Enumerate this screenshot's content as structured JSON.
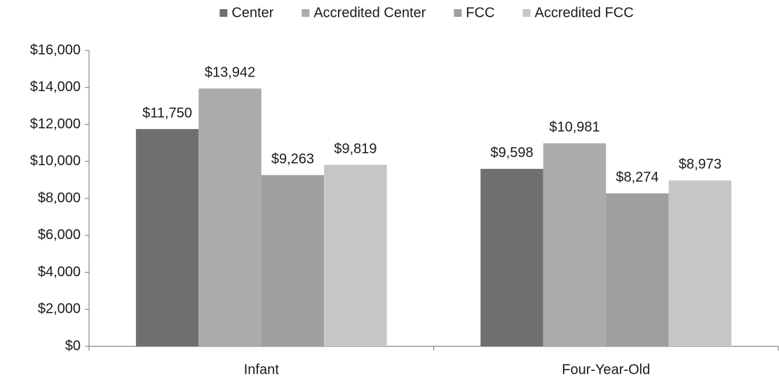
{
  "chart_data": {
    "type": "bar",
    "categories": [
      "Infant",
      "Four-Year-Old"
    ],
    "series": [
      {
        "name": "Center",
        "color": "#6f6f6f",
        "values": [
          11750,
          9598
        ],
        "value_labels": [
          "$11,750",
          "$9,598"
        ]
      },
      {
        "name": "Accredited Center",
        "color": "#ababab",
        "values": [
          13942,
          10981
        ],
        "value_labels": [
          "$13,942",
          "$10,981"
        ]
      },
      {
        "name": "FCC",
        "color": "#9f9f9f",
        "values": [
          9263,
          8274
        ],
        "value_labels": [
          "$9,263",
          "$8,274"
        ]
      },
      {
        "name": "Accredited FCC",
        "color": "#c6c6c6",
        "values": [
          9819,
          8973
        ],
        "value_labels": [
          "$9,819",
          "$8,973"
        ]
      }
    ],
    "ylim": [
      0,
      16000
    ],
    "yticks": [
      {
        "value": 0,
        "label": "$0"
      },
      {
        "value": 2000,
        "label": "$2,000"
      },
      {
        "value": 4000,
        "label": "$4,000"
      },
      {
        "value": 6000,
        "label": "$6,000"
      },
      {
        "value": 8000,
        "label": "$8,000"
      },
      {
        "value": 10000,
        "label": "$10,000"
      },
      {
        "value": 12000,
        "label": "$12,000"
      },
      {
        "value": 14000,
        "label": "$14,000"
      },
      {
        "value": 16000,
        "label": "$16,000"
      }
    ],
    "grid": false,
    "legend": "top"
  }
}
